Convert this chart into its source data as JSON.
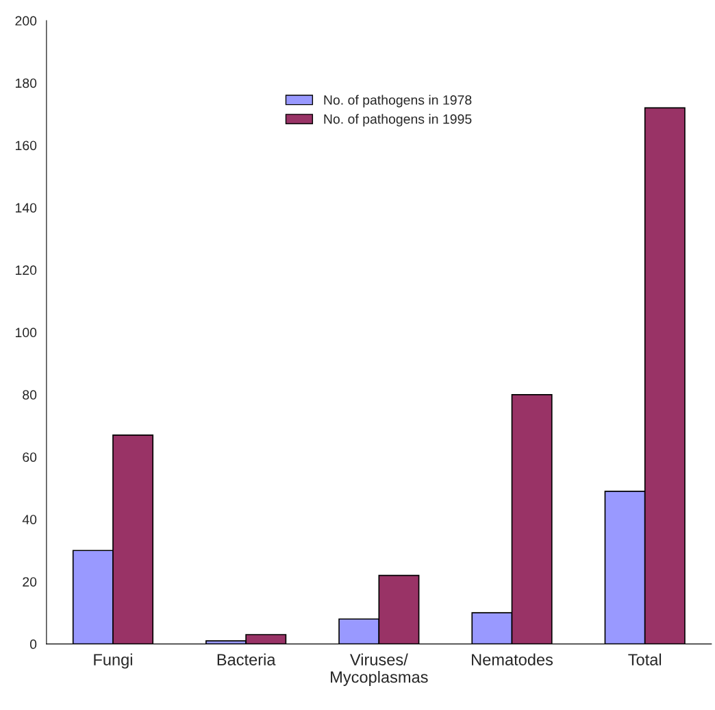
{
  "chart_data": {
    "type": "bar",
    "categories": [
      "Fungi",
      "Bacteria",
      "Viruses/\nMycoplasmas",
      "Nematodes",
      "Total"
    ],
    "series": [
      {
        "name": "No. of pathogens in 1978",
        "color": "#9999ff",
        "values": [
          30,
          1,
          8,
          10,
          49
        ]
      },
      {
        "name": "No. of pathogens in 1995",
        "color": "#993366",
        "values": [
          67,
          3,
          22,
          80,
          172
        ]
      }
    ],
    "ylim": [
      0,
      200
    ],
    "yticks": [
      0,
      20,
      40,
      60,
      80,
      100,
      120,
      140,
      160,
      180,
      200
    ],
    "grid": false,
    "legend": "top"
  }
}
